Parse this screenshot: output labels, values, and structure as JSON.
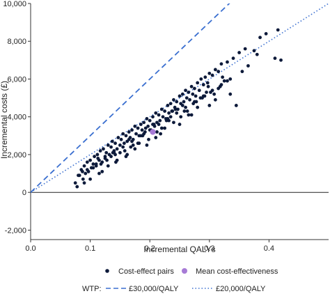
{
  "chart_data": {
    "type": "scatter",
    "xlabel": "Incremental QALYs",
    "ylabel": "Incremental costs (£)",
    "xlim": [
      0.0,
      0.5
    ],
    "ylim": [
      -2500,
      10000
    ],
    "x_ticks": [
      0.0,
      0.1,
      0.2,
      0.3,
      0.4
    ],
    "x_tick_labels": [
      "0.0",
      "0.1",
      "0.2",
      "0.3",
      "0.4"
    ],
    "y_ticks": [
      -2000,
      0,
      2000,
      4000,
      6000,
      8000,
      10000
    ],
    "y_tick_labels": [
      "-2,000",
      "0",
      "2,000",
      "4,000",
      "6,000",
      "8,000",
      "10,000"
    ],
    "grid": false,
    "legend": {
      "position": "bottom",
      "items": [
        {
          "label": "Cost-effect pairs",
          "marker": "dot",
          "color": "#0d1a3a"
        },
        {
          "label": "Mean cost-effectiveness",
          "marker": "dot",
          "color": "#a77bd6"
        }
      ],
      "wtp_label": "WTP:",
      "wtp_items": [
        {
          "label": "£30,000/QALY",
          "style": "dashed",
          "color": "#3a6fd0"
        },
        {
          "label": "£20,000/QALY",
          "style": "dotted",
          "color": "#3a6fd0"
        }
      ]
    },
    "reference_lines": [
      {
        "name": "£30,000/QALY",
        "slope": 30000,
        "intercept": 0,
        "style": "dashed",
        "color": "#3a6fd0"
      },
      {
        "name": "£20,000/QALY",
        "slope": 20000,
        "intercept": 0,
        "style": "dotted",
        "color": "#3a6fd0"
      }
    ],
    "mean_point": {
      "x": 0.205,
      "y": 3200,
      "color": "#a77bd6"
    },
    "points_color": "#0d1a3a",
    "series": [
      {
        "name": "Cost-effect pairs",
        "x": [
          0.075,
          0.078,
          0.082,
          0.085,
          0.088,
          0.09,
          0.092,
          0.095,
          0.097,
          0.1,
          0.102,
          0.105,
          0.107,
          0.11,
          0.112,
          0.115,
          0.117,
          0.12,
          0.122,
          0.125,
          0.127,
          0.13,
          0.132,
          0.135,
          0.137,
          0.14,
          0.142,
          0.145,
          0.147,
          0.15,
          0.152,
          0.155,
          0.157,
          0.16,
          0.162,
          0.165,
          0.167,
          0.17,
          0.172,
          0.175,
          0.177,
          0.18,
          0.182,
          0.185,
          0.187,
          0.19,
          0.192,
          0.195,
          0.197,
          0.2,
          0.202,
          0.205,
          0.207,
          0.21,
          0.212,
          0.215,
          0.217,
          0.22,
          0.222,
          0.225,
          0.227,
          0.23,
          0.232,
          0.235,
          0.237,
          0.24,
          0.242,
          0.245,
          0.247,
          0.25,
          0.252,
          0.255,
          0.257,
          0.26,
          0.262,
          0.265,
          0.267,
          0.27,
          0.272,
          0.275,
          0.277,
          0.28,
          0.283,
          0.286,
          0.29,
          0.293,
          0.297,
          0.3,
          0.305,
          0.31,
          0.315,
          0.32,
          0.33,
          0.34,
          0.35,
          0.36,
          0.375,
          0.385,
          0.41,
          0.415,
          0.08,
          0.095,
          0.11,
          0.125,
          0.14,
          0.155,
          0.17,
          0.185,
          0.2,
          0.215,
          0.23,
          0.245,
          0.26,
          0.275,
          0.29,
          0.305,
          0.32,
          0.335,
          0.13,
          0.16,
          0.18,
          0.21,
          0.24,
          0.27,
          0.3,
          0.33,
          0.12,
          0.145,
          0.175,
          0.195,
          0.225,
          0.25,
          0.28,
          0.31,
          0.345,
          0.395,
          0.42,
          0.09,
          0.105,
          0.135,
          0.15,
          0.165,
          0.19,
          0.205,
          0.22,
          0.235,
          0.255,
          0.265,
          0.285,
          0.295,
          0.315,
          0.325,
          0.355,
          0.365,
          0.38,
          0.1,
          0.115,
          0.128,
          0.142,
          0.158,
          0.172,
          0.188,
          0.198,
          0.212,
          0.228,
          0.243,
          0.258,
          0.273,
          0.288,
          0.302,
          0.318,
          0.335,
          0.118,
          0.138,
          0.162,
          0.182,
          0.208,
          0.232,
          0.252,
          0.278,
          0.298,
          0.322,
          0.087,
          0.113,
          0.143,
          0.168,
          0.193,
          0.218,
          0.238,
          0.263,
          0.292,
          0.308
        ],
        "y": [
          500,
          300,
          900,
          1200,
          700,
          1400,
          1000,
          1600,
          1100,
          1700,
          1300,
          1500,
          1900,
          1400,
          2000,
          1700,
          2200,
          1600,
          2300,
          1900,
          2100,
          2500,
          2000,
          2400,
          2700,
          2200,
          2600,
          2300,
          2900,
          2500,
          2800,
          3100,
          2600,
          3000,
          2700,
          3200,
          2900,
          3300,
          2800,
          3500,
          3100,
          3400,
          3000,
          3600,
          3300,
          3700,
          3200,
          3900,
          3500,
          3800,
          3300,
          4000,
          3600,
          4200,
          3700,
          4100,
          3800,
          4400,
          4000,
          4300,
          3900,
          4600,
          4200,
          4700,
          4300,
          4900,
          4500,
          4800,
          4400,
          5100,
          4700,
          5200,
          4800,
          5400,
          5000,
          5300,
          4900,
          5600,
          5200,
          5500,
          5100,
          5800,
          5400,
          6000,
          5700,
          6100,
          5800,
          6300,
          6200,
          6500,
          6400,
          6800,
          6900,
          7100,
          7400,
          7600,
          7500,
          8200,
          7100,
          8600,
          900,
          1200,
          1500,
          1800,
          2100,
          2400,
          2700,
          3000,
          3300,
          3600,
          3900,
          4200,
          4500,
          4800,
          5100,
          5400,
          5700,
          6000,
          1400,
          1900,
          2600,
          2900,
          3700,
          4100,
          4600,
          5900,
          1100,
          1700,
          2300,
          2500,
          3400,
          3600,
          4500,
          4900,
          4600,
          8400,
          7000,
          500,
          1300,
          1900,
          2100,
          2800,
          3100,
          3600,
          3400,
          4000,
          4600,
          4100,
          5000,
          5300,
          5500,
          5900,
          6400,
          6700,
          7300,
          700,
          1000,
          1700,
          2000,
          2200,
          2500,
          3000,
          2800,
          3200,
          3800,
          4400,
          4300,
          4700,
          5000,
          5300,
          5600,
          5200,
          1500,
          2100,
          2000,
          2600,
          3500,
          3800,
          4000,
          4800,
          5600,
          6100,
          1100,
          1800,
          1600,
          2400,
          3400,
          3100,
          4300,
          4300,
          5100,
          5200
        ]
      }
    ]
  }
}
